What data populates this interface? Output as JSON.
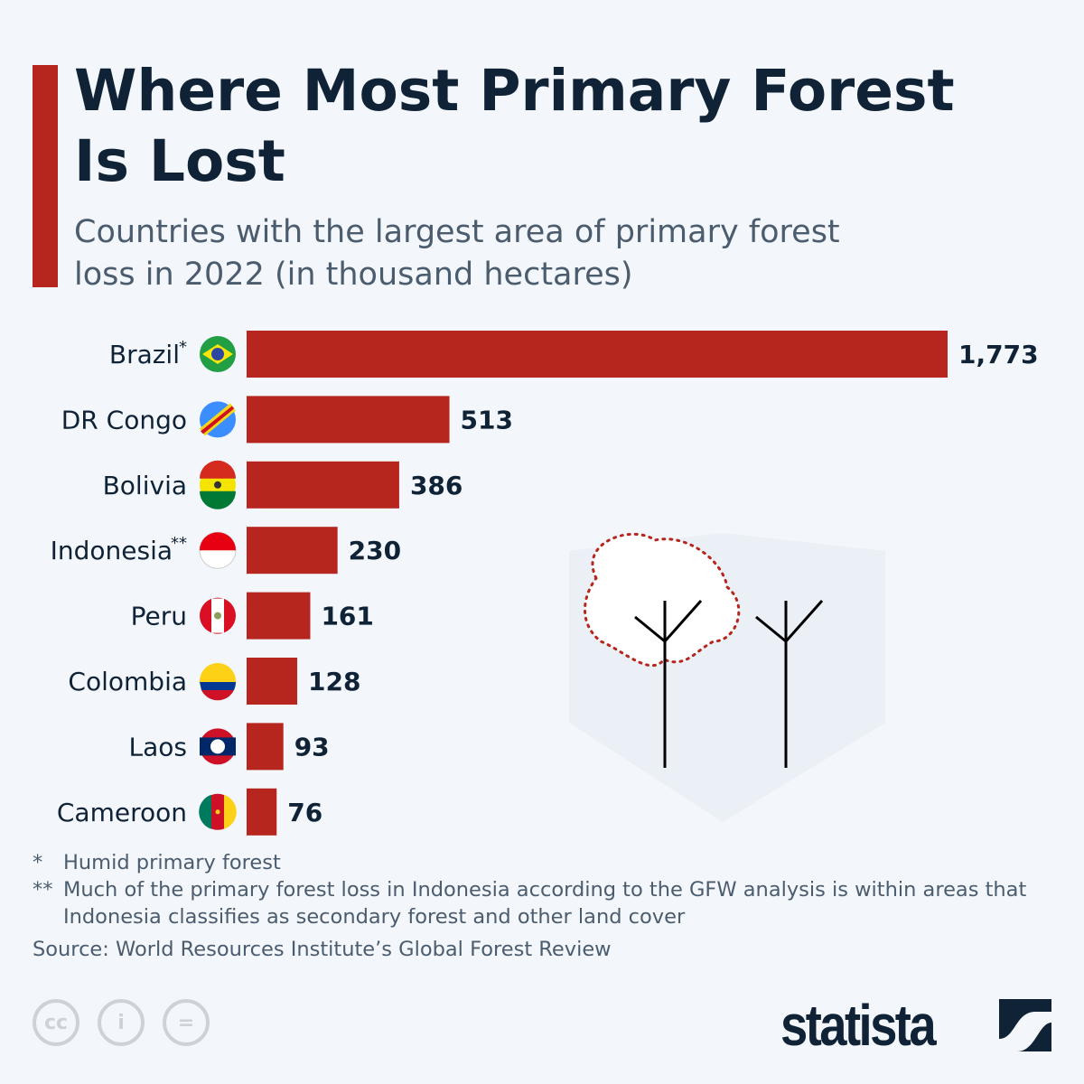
{
  "title": "Where Most Primary Forest Is Lost",
  "subtitle": "Countries with the largest area of primary forest loss in 2022 (in thousand hectares)",
  "colors": {
    "accent": "#b6261e",
    "bar": "#b6261e",
    "text": "#0f2236",
    "background": "#f3f7fb"
  },
  "chart_data": {
    "type": "bar",
    "orientation": "horizontal",
    "categories": [
      "Brazil*",
      "DR Congo",
      "Bolivia",
      "Indonesia**",
      "Peru",
      "Colombia",
      "Laos",
      "Cameroon"
    ],
    "values": [
      1773,
      513,
      386,
      230,
      161,
      128,
      93,
      76
    ],
    "value_labels": [
      "1,773",
      "513",
      "386",
      "230",
      "161",
      "128",
      "93",
      "76"
    ],
    "flags": [
      "brazil-flag-icon",
      "dr-congo-flag-icon",
      "bolivia-flag-icon",
      "indonesia-flag-icon",
      "peru-flag-icon",
      "colombia-flag-icon",
      "laos-flag-icon",
      "cameroon-flag-icon"
    ],
    "xlim": [
      0,
      1773
    ],
    "grid": false
  },
  "footnotes": [
    {
      "mark": "*",
      "text": "Humid primary forest"
    },
    {
      "mark": "**",
      "text": "Much of the primary forest loss in Indonesia according to the GFW analysis is within areas that Indonesia classifies as secondary forest and other land cover"
    }
  ],
  "source": "Source: World Resources Institute’s Global Forest Review",
  "brand": "statista"
}
